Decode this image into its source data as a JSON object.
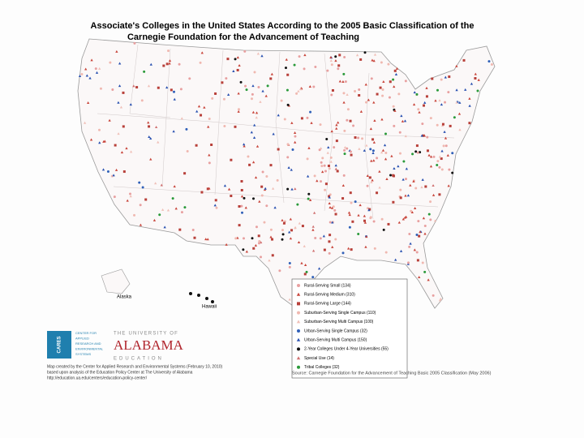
{
  "title": [
    "Associate's Colleges in the United States According to the 2005 Basic Classification of the",
    "Carnegie Foundation for the Advancement of Teaching"
  ],
  "insets": [
    "Alaska",
    "Hawaii"
  ],
  "legend": {
    "items": [
      {
        "label": "Rural-Serving Small (134)",
        "shape": "circle",
        "color": "#e8a0a0"
      },
      {
        "label": "Rural-Serving Medium (310)",
        "shape": "triangle",
        "color": "#c8443a"
      },
      {
        "label": "Rural-Serving Large (144)",
        "shape": "square",
        "color": "#b8403a"
      },
      {
        "label": "Suburban-Serving Single Campus (110)",
        "shape": "circle",
        "color": "#f0b8b0"
      },
      {
        "label": "Suburban-Serving Multi Campus (100)",
        "shape": "triangle",
        "color": "#f0c0b8"
      },
      {
        "label": "Urban-Serving Single Campus (32)",
        "shape": "circle",
        "color": "#3060b8"
      },
      {
        "label": "Urban-Serving Multi Campus (150)",
        "shape": "triangle",
        "color": "#2850b0"
      },
      {
        "label": "2-Year Colleges Under 4-Year Universities (55)",
        "shape": "circle",
        "color": "#111111"
      },
      {
        "label": "Special Use (14)",
        "shape": "triangle",
        "color": "#d07070"
      },
      {
        "label": "Tribal Colleges (32)",
        "shape": "circle",
        "color": "#2a9a3a"
      }
    ]
  },
  "logo": {
    "center": [
      "CENTER FOR",
      "APPLIED",
      "RESEARCH AND",
      "ENVIRONMENTAL",
      "SYSTEMS"
    ],
    "acronym": "CARES",
    "university": [
      "THE UNIVERSITY OF",
      "ALABAMA",
      "EDUCATION"
    ]
  },
  "credits": [
    "Map created by the Center for Applied Research and Environmental Systems (February 10, 2010)",
    "based upon analysis of the Education Policy Center at The University of Alabama",
    "http://education.ua.edu/centers/education-policy-center/"
  ],
  "source": "Source: Carnegie Foundation for the Advancement of Teaching Basic 2005 Classification (May 2006)"
}
